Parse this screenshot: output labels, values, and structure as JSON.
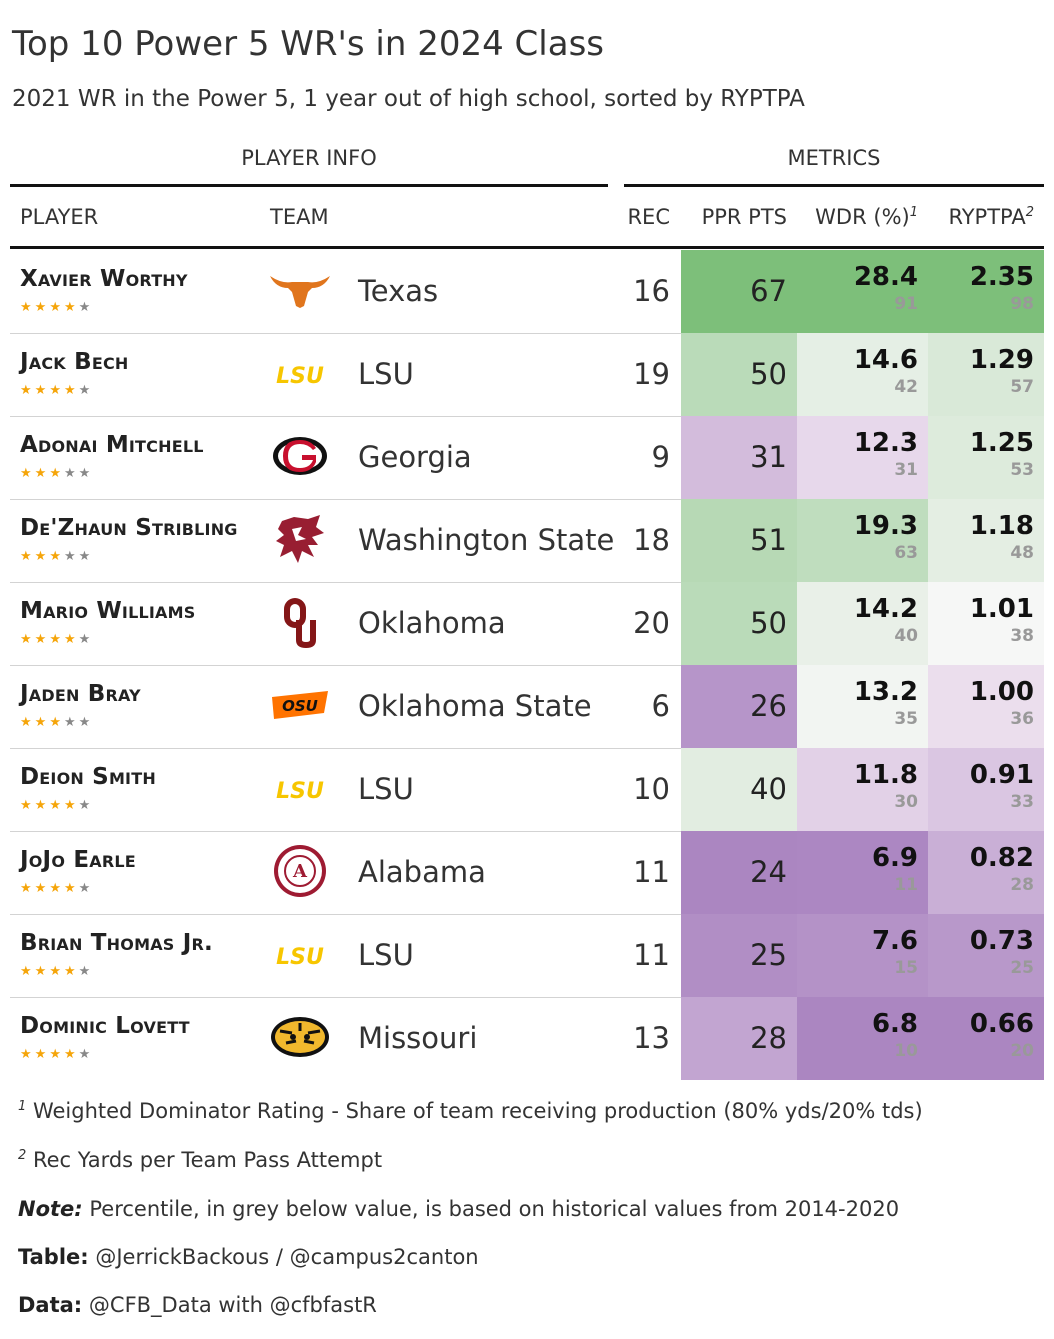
{
  "title": "Top 10 Power 5 WR's in 2024 Class",
  "subtitle": "2021 WR in the Power 5, 1 year out of high school, sorted by RYPTPA",
  "spanners": {
    "player_info": "PLAYER INFO",
    "metrics": "METRICS"
  },
  "columns": {
    "player": "PLAYER",
    "team": "TEAM",
    "rec": "REC",
    "ppr": "PPR PTS",
    "wdr": "WDR (%)",
    "wdr_mark": "1",
    "ryptpa": "RYPTPA",
    "ryptpa_mark": "2"
  },
  "colors": {
    "green_dark": "#7dbf7a",
    "green_light": "#e8f4e6",
    "purple_dark": "#ab86c1",
    "purple_light": "#ecdfee",
    "star": "#f5a50a"
  },
  "chart_data": {
    "type": "table",
    "rows": [
      {
        "player": "Xavier Worthy",
        "stars": 4,
        "team": "Texas",
        "logo": "longhorn-logo",
        "rec": 16,
        "ppr": 67,
        "wdr": "28.4",
        "wdr_pct": 91,
        "ryptpa": "2.35",
        "ryptpa_pct": 98
      },
      {
        "player": "Jack Bech",
        "stars": 4,
        "team": "LSU",
        "logo": "lsu-logo",
        "rec": 19,
        "ppr": 50,
        "wdr": "14.6",
        "wdr_pct": 42,
        "ryptpa": "1.29",
        "ryptpa_pct": 57
      },
      {
        "player": "Adonai Mitchell",
        "stars": 3,
        "team": "Georgia",
        "logo": "georgia-g-logo",
        "rec": 9,
        "ppr": 31,
        "wdr": "12.3",
        "wdr_pct": 31,
        "ryptpa": "1.25",
        "ryptpa_pct": 53
      },
      {
        "player": "De'Zhaun Stribling",
        "stars": 3,
        "team": "Washington State",
        "logo": "cougar-logo",
        "rec": 18,
        "ppr": 51,
        "wdr": "19.3",
        "wdr_pct": 63,
        "ryptpa": "1.18",
        "ryptpa_pct": 48
      },
      {
        "player": "Mario Williams",
        "stars": 4,
        "team": "Oklahoma",
        "logo": "ou-logo",
        "rec": 20,
        "ppr": 50,
        "wdr": "14.2",
        "wdr_pct": 40,
        "ryptpa": "1.01",
        "ryptpa_pct": 38
      },
      {
        "player": "Jaden Bray",
        "stars": 3,
        "team": "Oklahoma State",
        "logo": "osu-logo",
        "rec": 6,
        "ppr": 26,
        "wdr": "13.2",
        "wdr_pct": 35,
        "ryptpa": "1.00",
        "ryptpa_pct": 36
      },
      {
        "player": "Deion Smith",
        "stars": 4,
        "team": "LSU",
        "logo": "lsu-logo",
        "rec": 10,
        "ppr": 40,
        "wdr": "11.8",
        "wdr_pct": 30,
        "ryptpa": "0.91",
        "ryptpa_pct": 33
      },
      {
        "player": "JoJo Earle",
        "stars": 4,
        "team": "Alabama",
        "logo": "alabama-seal-logo",
        "rec": 11,
        "ppr": 24,
        "wdr": "6.9",
        "wdr_pct": 11,
        "ryptpa": "0.82",
        "ryptpa_pct": 28
      },
      {
        "player": "Brian Thomas Jr.",
        "stars": 4,
        "team": "LSU",
        "logo": "lsu-logo",
        "rec": 11,
        "ppr": 25,
        "wdr": "7.6",
        "wdr_pct": 15,
        "ryptpa": "0.73",
        "ryptpa_pct": 25
      },
      {
        "player": "Dominic Lovett",
        "stars": 4,
        "team": "Missouri",
        "logo": "tiger-logo",
        "rec": 13,
        "ppr": 28,
        "wdr": "6.8",
        "wdr_pct": 10,
        "ryptpa": "0.66",
        "ryptpa_pct": 20
      }
    ]
  },
  "footnotes": {
    "fn1_mark": "1",
    "fn1": "Weighted Dominator Rating - Share of team receiving production (80% yds/20% tds)",
    "fn2_mark": "2",
    "fn2": "Rec Yards per Team Pass Attempt",
    "note_label": "Note:",
    "note": "Percentile, in grey below value, is based on historical values from 2014-2020",
    "table_label": "Table:",
    "table": "@JerrickBackous / @campus2canton",
    "data_label": "Data:",
    "data": "@CFB_Data with @cfbfastR"
  }
}
